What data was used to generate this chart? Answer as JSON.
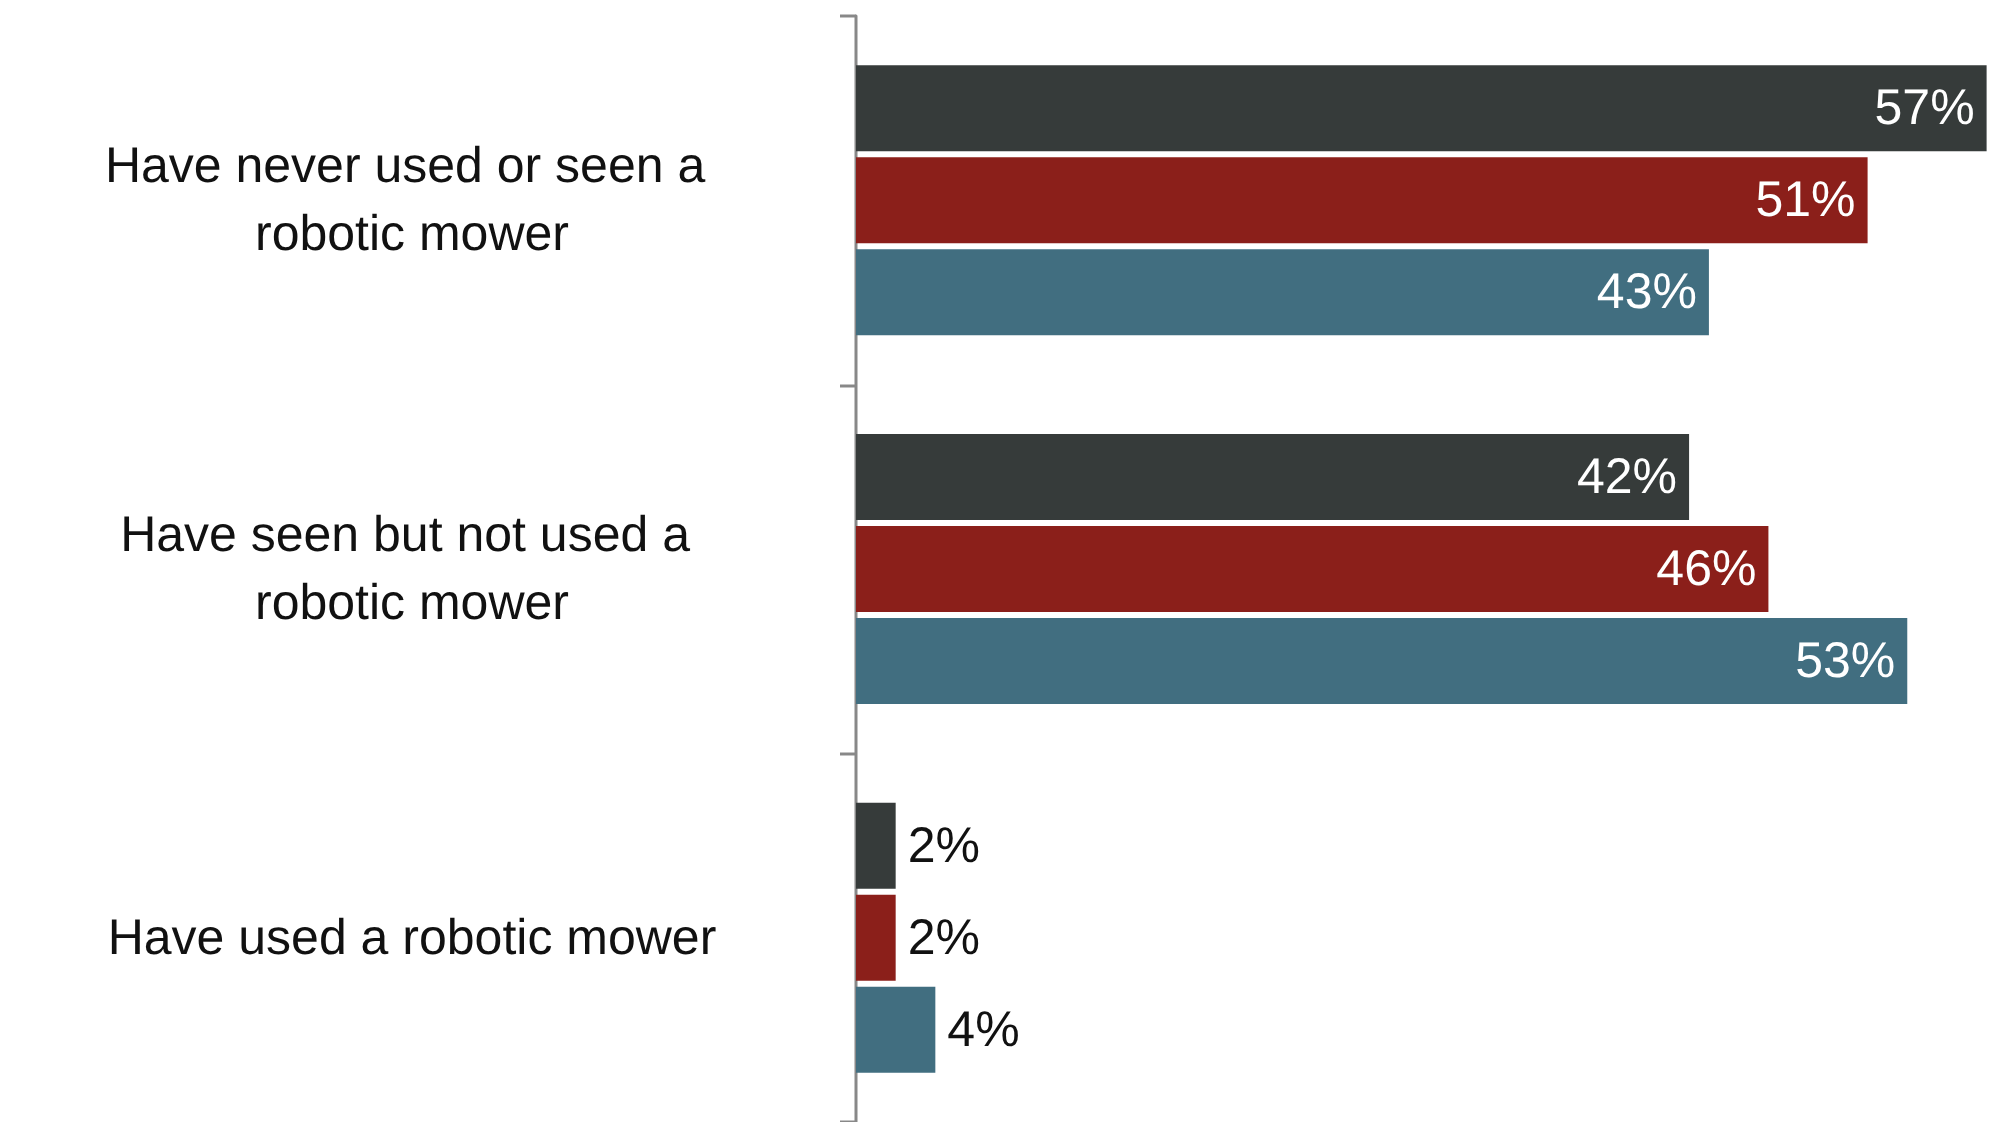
{
  "chart_data": {
    "type": "bar",
    "orientation": "horizontal",
    "categories": [
      "Have never used or seen a robotic mower",
      "Have seen but not used a robotic mower",
      "Have used a robotic mower"
    ],
    "series": [
      {
        "color": "#363b3a",
        "values": [
          57,
          42,
          2
        ],
        "value_labels": [
          "57%",
          "42%",
          "2%"
        ]
      },
      {
        "color": "#8b1f1a",
        "values": [
          51,
          46,
          2
        ],
        "value_labels": [
          "51%",
          "46%",
          "2%"
        ]
      },
      {
        "color": "#416e80",
        "values": [
          43,
          53,
          4
        ],
        "value_labels": [
          "43%",
          "53%",
          "4%"
        ]
      }
    ]
  }
}
